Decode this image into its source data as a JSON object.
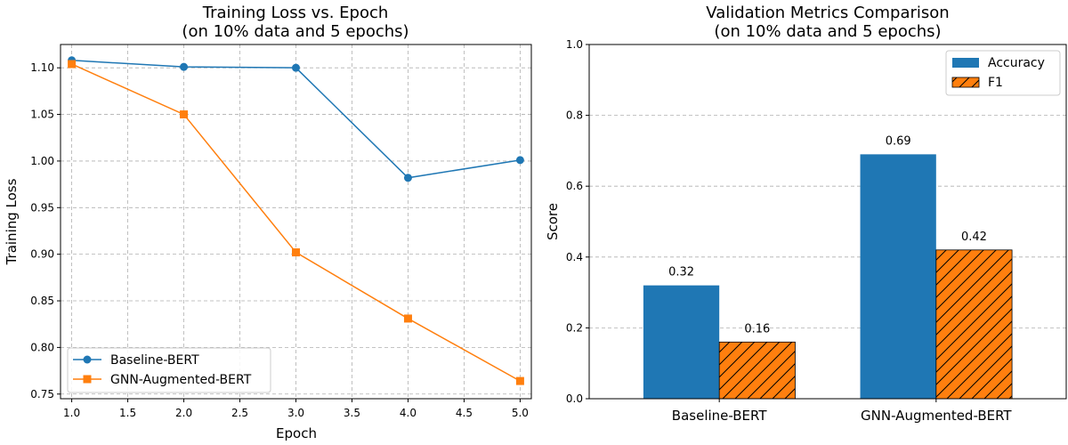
{
  "chart_data": [
    {
      "type": "line",
      "title": "Training Loss vs. Epoch",
      "subtitle": "(on 10% data and 5 epochs)",
      "xlabel": "Epoch",
      "ylabel": "Training Loss",
      "xlim": [
        0.9,
        5.1
      ],
      "ylim": [
        0.745,
        1.125
      ],
      "xticks": [
        "1.0",
        "1.5",
        "2.0",
        "2.5",
        "3.0",
        "3.5",
        "4.0",
        "4.5",
        "5.0"
      ],
      "yticks": [
        "0.75",
        "0.80",
        "0.85",
        "0.90",
        "0.95",
        "1.00",
        "1.05",
        "1.10"
      ],
      "grid": true,
      "legend_position": "lower-left",
      "x": [
        1,
        2,
        3,
        4,
        5
      ],
      "series": [
        {
          "name": "Baseline-BERT",
          "values": [
            1.108,
            1.101,
            1.1,
            0.982,
            1.001
          ],
          "color": "#1f77b4",
          "marker": "circle"
        },
        {
          "name": "GNN-Augmented-BERT",
          "values": [
            1.104,
            1.05,
            0.902,
            0.831,
            0.764
          ],
          "color": "#ff7f0e",
          "marker": "square"
        }
      ]
    },
    {
      "type": "bar",
      "title": "Validation Metrics Comparison",
      "subtitle": "(on 10% data and 5 epochs)",
      "xlabel": "",
      "ylabel": "Score",
      "ylim": [
        0,
        1.0
      ],
      "yticks": [
        "0.0",
        "0.2",
        "0.4",
        "0.6",
        "0.8",
        "1.0"
      ],
      "grid": true,
      "grid_axis": "y",
      "legend_position": "top-right",
      "categories": [
        "Baseline-BERT",
        "GNN-Augmented-BERT"
      ],
      "series": [
        {
          "name": "Accuracy",
          "values": [
            0.32,
            0.69
          ],
          "labels": [
            "0.32",
            "0.69"
          ],
          "color": "#1f77b4",
          "hatch": false
        },
        {
          "name": "F1",
          "values": [
            0.16,
            0.42
          ],
          "labels": [
            "0.16",
            "0.42"
          ],
          "color": "#ff7f0e",
          "hatch": true
        }
      ]
    }
  ]
}
